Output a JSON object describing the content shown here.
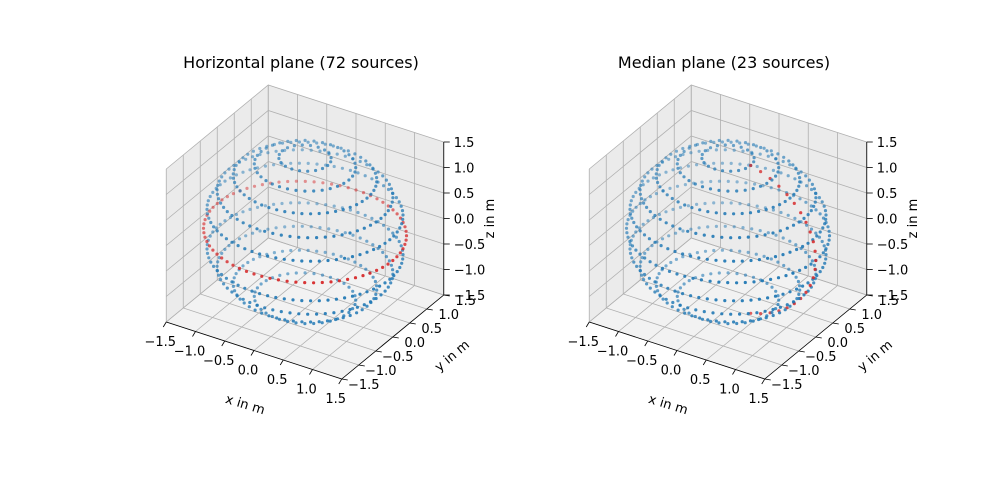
{
  "chart_data": [
    {
      "type": "scatter",
      "subtype": "3d",
      "title": "Horizontal plane (72 sources)",
      "xlabel": "x in m",
      "ylabel": "y in m",
      "zlabel": "z in m",
      "xlim": [
        -1.5,
        1.5
      ],
      "ylim": [
        -1.5,
        1.5
      ],
      "zlim": [
        -1.5,
        1.5
      ],
      "x_ticks": [
        "−1.5",
        "−1.0",
        "−0.5",
        "0.0",
        "0.5",
        "1.0",
        "1.5"
      ],
      "y_ticks": [
        "−1.5",
        "−1.0",
        "−0.5",
        "0.0",
        "0.5",
        "1.0",
        "1.5"
      ],
      "z_ticks": [
        "−1.5",
        "−1.0",
        "−0.5",
        "0.0",
        "0.5",
        "1.0",
        "1.5"
      ],
      "grid": true,
      "sphere_radius": 1.5,
      "elevation_rings_deg": [
        -60,
        -45,
        -30,
        -15,
        0,
        15,
        30,
        45,
        60,
        75
      ],
      "points_per_ring": [
        36,
        52,
        62,
        70,
        72,
        70,
        62,
        52,
        36,
        20
      ],
      "highlight": "horizontal",
      "highlight_count": 72,
      "colors": {
        "all_sources": "#1f77b4",
        "highlighted": "#d62728"
      }
    },
    {
      "type": "scatter",
      "subtype": "3d",
      "title": "Median plane (23 sources)",
      "xlabel": "x in m",
      "ylabel": "y in m",
      "zlabel": "z in m",
      "xlim": [
        -1.5,
        1.5
      ],
      "ylim": [
        -1.5,
        1.5
      ],
      "zlim": [
        -1.5,
        1.5
      ],
      "x_ticks": [
        "−1.5",
        "−1.0",
        "−0.5",
        "0.0",
        "0.5",
        "1.0",
        "1.5"
      ],
      "y_ticks": [
        "−1.5",
        "−1.0",
        "−0.5",
        "0.0",
        "0.5",
        "1.0",
        "1.5"
      ],
      "z_ticks": [
        "−1.5",
        "−1.0",
        "−0.5",
        "0.0",
        "0.5",
        "1.0",
        "1.5"
      ],
      "grid": true,
      "sphere_radius": 1.5,
      "elevation_rings_deg": [
        -60,
        -45,
        -30,
        -15,
        0,
        15,
        30,
        45,
        60,
        75
      ],
      "points_per_ring": [
        36,
        52,
        62,
        70,
        72,
        70,
        62,
        52,
        36,
        20
      ],
      "highlight": "median",
      "highlight_count": 23,
      "colors": {
        "all_sources": "#1f77b4",
        "highlighted": "#d62728"
      }
    }
  ]
}
